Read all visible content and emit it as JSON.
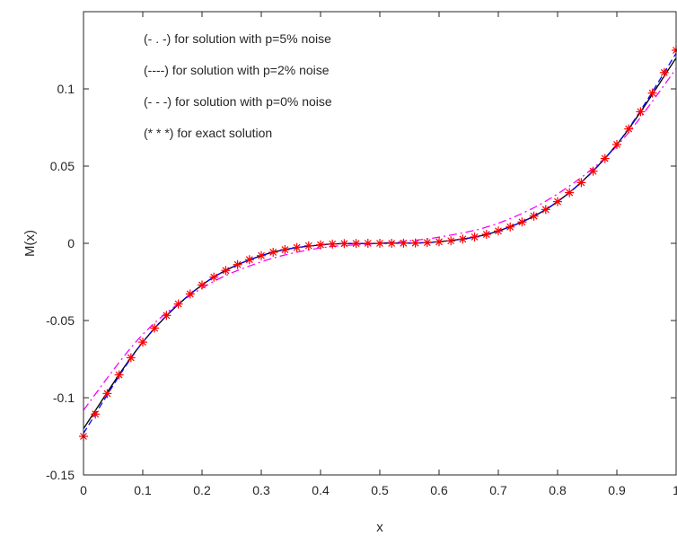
{
  "chart_data": {
    "type": "line",
    "title": "",
    "xlabel": "x",
    "ylabel": "M(x)",
    "xlim": [
      0,
      1
    ],
    "ylim": [
      -0.15,
      0.15
    ],
    "xticks": [
      0,
      0.1,
      0.2,
      0.3,
      0.4,
      0.5,
      0.6,
      0.7,
      0.8,
      0.9,
      1
    ],
    "xtick_labels": [
      "0",
      "0.1",
      "0.2",
      "0.3",
      "0.4",
      "0.5",
      "0.6",
      "0.7",
      "0.8",
      "0.9",
      "1"
    ],
    "yticks": [
      -0.15,
      -0.1,
      -0.05,
      0,
      0.05,
      0.1
    ],
    "ytick_labels": [
      "-0.15",
      "-0.1",
      "-0.05",
      "0",
      "0.05",
      "0.1"
    ],
    "grid": false,
    "legend_placement": "top-left",
    "annotations": [
      "(- . -) for solution with p=5% noise",
      "(----) for solution with p=2% noise",
      "(- - -) for solution with p=0% noise",
      "(* * *) for exact solution"
    ],
    "series": [
      {
        "style": "dash-dot",
        "color": "#ff00ff",
        "x": [
          0,
          0.1,
          0.2,
          0.3,
          0.4,
          0.5,
          0.6,
          0.7,
          0.8,
          0.9,
          1
        ],
        "y": [
          -0.108,
          -0.059,
          -0.029,
          -0.012,
          -0.003,
          0.0,
          0.004,
          0.013,
          0.032,
          0.063,
          0.113
        ]
      },
      {
        "style": "solid",
        "color": "#000000",
        "x": [
          0,
          0.1,
          0.2,
          0.3,
          0.4,
          0.5,
          0.6,
          0.7,
          0.8,
          0.9,
          1
        ],
        "y": [
          -0.12,
          -0.064,
          -0.027,
          -0.008,
          -0.001,
          0.0,
          0.001,
          0.008,
          0.027,
          0.064,
          0.12
        ]
      },
      {
        "style": "dashed",
        "color": "#0000ff",
        "x": [
          0,
          0.1,
          0.2,
          0.3,
          0.4,
          0.5,
          0.6,
          0.7,
          0.8,
          0.9,
          1
        ],
        "y": [
          -0.123,
          -0.064,
          -0.027,
          -0.008,
          -0.001,
          0.0,
          0.001,
          0.008,
          0.027,
          0.064,
          0.123
        ]
      },
      {
        "style": "markers",
        "marker": "asterisk",
        "color": "#ff0000",
        "x": [
          0,
          0.02,
          0.04,
          0.06,
          0.08,
          0.1,
          0.12,
          0.14,
          0.16,
          0.18,
          0.2,
          0.22,
          0.24,
          0.26,
          0.28,
          0.3,
          0.32,
          0.34,
          0.36,
          0.38,
          0.4,
          0.42,
          0.44,
          0.46,
          0.48,
          0.5,
          0.52,
          0.54,
          0.56,
          0.58,
          0.6,
          0.62,
          0.64,
          0.66,
          0.68,
          0.7,
          0.72,
          0.74,
          0.76,
          0.78,
          0.8,
          0.82,
          0.84,
          0.86,
          0.88,
          0.9,
          0.92,
          0.94,
          0.96,
          0.98,
          1
        ],
        "y": [
          -0.125,
          -0.1106,
          -0.0973,
          -0.0852,
          -0.0741,
          -0.064,
          -0.0549,
          -0.0467,
          -0.0393,
          -0.0328,
          -0.027,
          -0.0219,
          -0.0176,
          -0.0138,
          -0.0106,
          -0.008,
          -0.0058,
          -0.0041,
          -0.0027,
          -0.0016,
          -0.001,
          -0.0005,
          -0.0002,
          -0.0001,
          0.0,
          0.0,
          0.0,
          0.0001,
          0.0002,
          0.0005,
          0.001,
          0.0016,
          0.0027,
          0.0041,
          0.0058,
          0.008,
          0.0106,
          0.0138,
          0.0176,
          0.0219,
          0.027,
          0.0328,
          0.0393,
          0.0467,
          0.0549,
          0.064,
          0.0741,
          0.0852,
          0.0973,
          0.1106,
          0.125
        ]
      }
    ]
  }
}
